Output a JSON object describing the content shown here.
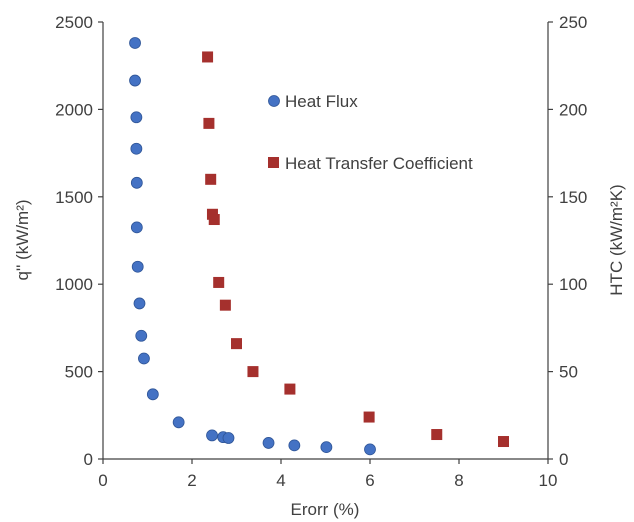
{
  "chart_data": {
    "type": "scatter",
    "xlabel": "Erorr (%)",
    "ylabel_left": "q'' (kW/m²)",
    "ylabel_right": "HTC (kW/m²K)",
    "xlim": [
      0,
      10
    ],
    "ylim_left": [
      0,
      2500
    ],
    "ylim_right": [
      0,
      250
    ],
    "x_ticks": [
      "0",
      "2",
      "4",
      "6",
      "8",
      "10"
    ],
    "y_left_ticks": [
      "0",
      "500",
      "1000",
      "1500",
      "2000",
      "2500"
    ],
    "y_right_ticks": [
      "0",
      "50",
      "100",
      "150",
      "200",
      "250"
    ],
    "grid": false,
    "legend_position": "inside-upper-right",
    "series": [
      {
        "name": "Heat Flux",
        "axis": "left",
        "marker": "circle",
        "color": "#4472C4",
        "points": [
          [
            0.72,
            2380
          ],
          [
            0.72,
            2165
          ],
          [
            0.75,
            1955
          ],
          [
            0.75,
            1775
          ],
          [
            0.76,
            1580
          ],
          [
            0.76,
            1325
          ],
          [
            0.78,
            1100
          ],
          [
            0.82,
            890
          ],
          [
            0.86,
            705
          ],
          [
            0.92,
            575
          ],
          [
            1.12,
            370
          ],
          [
            1.7,
            210
          ],
          [
            2.45,
            135
          ],
          [
            2.7,
            125
          ],
          [
            2.82,
            120
          ],
          [
            3.72,
            92
          ],
          [
            4.3,
            78
          ],
          [
            5.02,
            68
          ],
          [
            6.0,
            55
          ]
        ]
      },
      {
        "name": "Heat Transfer Coefficient",
        "axis": "right",
        "marker": "square",
        "color": "#A5302D",
        "points": [
          [
            2.35,
            230
          ],
          [
            2.38,
            192
          ],
          [
            2.42,
            160
          ],
          [
            2.46,
            140
          ],
          [
            2.5,
            137
          ],
          [
            2.6,
            101
          ],
          [
            2.75,
            88
          ],
          [
            3.0,
            66
          ],
          [
            3.37,
            50
          ],
          [
            4.2,
            40
          ],
          [
            5.98,
            24
          ],
          [
            7.5,
            14
          ],
          [
            9.0,
            10
          ]
        ]
      }
    ]
  }
}
